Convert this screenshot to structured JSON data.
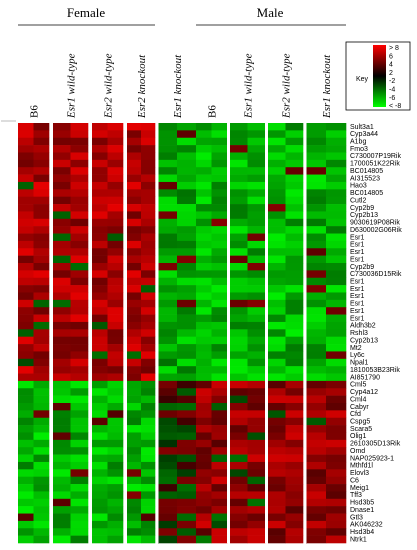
{
  "chart_data": {
    "type": "heatmap",
    "title": "",
    "xlabel": "",
    "ylabel": "",
    "groups": [
      "Female",
      "Male"
    ],
    "columns": [
      {
        "group": "Female",
        "genotype": "B6",
        "italic": false
      },
      {
        "group": "Female",
        "genotype": "Esr1 wild-type",
        "italic": true
      },
      {
        "group": "Female",
        "genotype": "Esr2 wild-type",
        "italic": true
      },
      {
        "group": "Female",
        "genotype": "Esr2 knockout",
        "italic": true
      },
      {
        "group": "Female",
        "genotype": "Esr1 knockout",
        "italic": true
      },
      {
        "group": "Male",
        "genotype": "B6",
        "italic": false
      },
      {
        "group": "Male",
        "genotype": "Esr1 wild-type",
        "italic": true
      },
      {
        "group": "Male",
        "genotype": "Esr2 wild-type",
        "italic": true
      },
      {
        "group": "Male",
        "genotype": "Esr1 knockout",
        "italic": true
      }
    ],
    "genes": [
      "Sult3a1",
      "Cyp3a44",
      "A1bg",
      "Fmo3",
      "C730007P19Rik",
      "1700051K22Rik",
      "BC014805",
      "AI315523",
      "Hao3",
      "BC014805",
      "Cutl2",
      "Cyp2b9",
      "Cyp2b13",
      "9030619P08Rik",
      "D630002G06Rik",
      "Esr1",
      "Esr1",
      "Esr1",
      "Esr1",
      "Cyp2b9",
      "C730036D15Rik",
      "Esr1",
      "Esr1",
      "Esr1",
      "Esr1",
      "Esr1",
      "Esr1",
      "Aldh3b2",
      "Rshl3",
      "Cyp2b13",
      "Mt2",
      "Ly6c",
      "Npal1",
      "1810053B23Rik",
      "AI851790",
      "Cml5",
      "Cyp4a12",
      "Cml4",
      "Cabyr",
      "Cfd",
      "Cspg5",
      "Scara5",
      "Olig1",
      "2610305D13Rik",
      "Omd",
      "NAP025923-1",
      "Mthfd1l",
      "Elovl3",
      "C6",
      "Meig1",
      "Tff3",
      "Hsd3b5",
      "Dnase1",
      "Gtl3",
      "AK046232",
      "Hsd3b4",
      "Ntrk1"
    ],
    "key": {
      "title": "Key",
      "tick_labels": [
        "> 8",
        "6",
        "4",
        "2",
        "-2",
        "-4",
        "-6",
        "< -8"
      ],
      "high_color": "#ff0000",
      "mid_color": "#000000",
      "low_color": "#00ff00"
    }
  }
}
